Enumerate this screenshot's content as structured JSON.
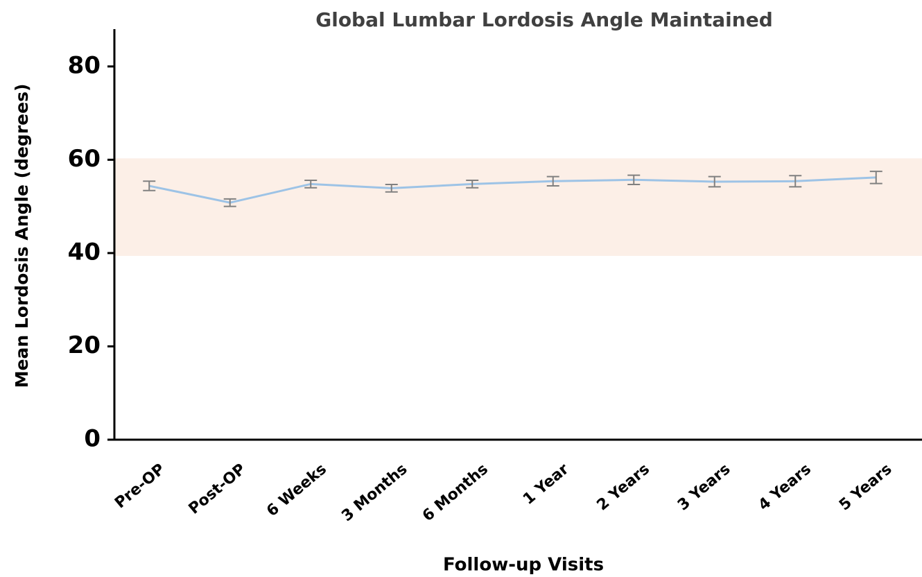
{
  "chart_data": {
    "type": "line",
    "title": "Global Lumbar Lordosis Angle Maintained",
    "xlabel": "Follow-up Visits",
    "ylabel": "Mean Lordosis  Angle (degrees)",
    "categories": [
      "Pre-OP",
      "Post-OP",
      "6 Weeks",
      "3 Months",
      "6 Months",
      "1 Year",
      "2 Years",
      "3 Years",
      "4 Years",
      "5 Years"
    ],
    "series": [
      {
        "color": "#9dc3e6",
        "error_color": "#808080",
        "values": [
          54.4,
          50.8,
          54.8,
          53.9,
          54.8,
          55.4,
          55.7,
          55.3,
          55.4,
          56.2
        ],
        "errors": [
          1.0,
          0.8,
          0.8,
          0.8,
          0.8,
          1.0,
          1.0,
          1.1,
          1.2,
          1.3
        ]
      }
    ],
    "band": [
      39.4,
      60.3
    ],
    "band_color": "#fcefe7",
    "ylim": [
      0,
      88
    ],
    "yticks": [
      0,
      20,
      40,
      60,
      80
    ],
    "grid": false
  }
}
